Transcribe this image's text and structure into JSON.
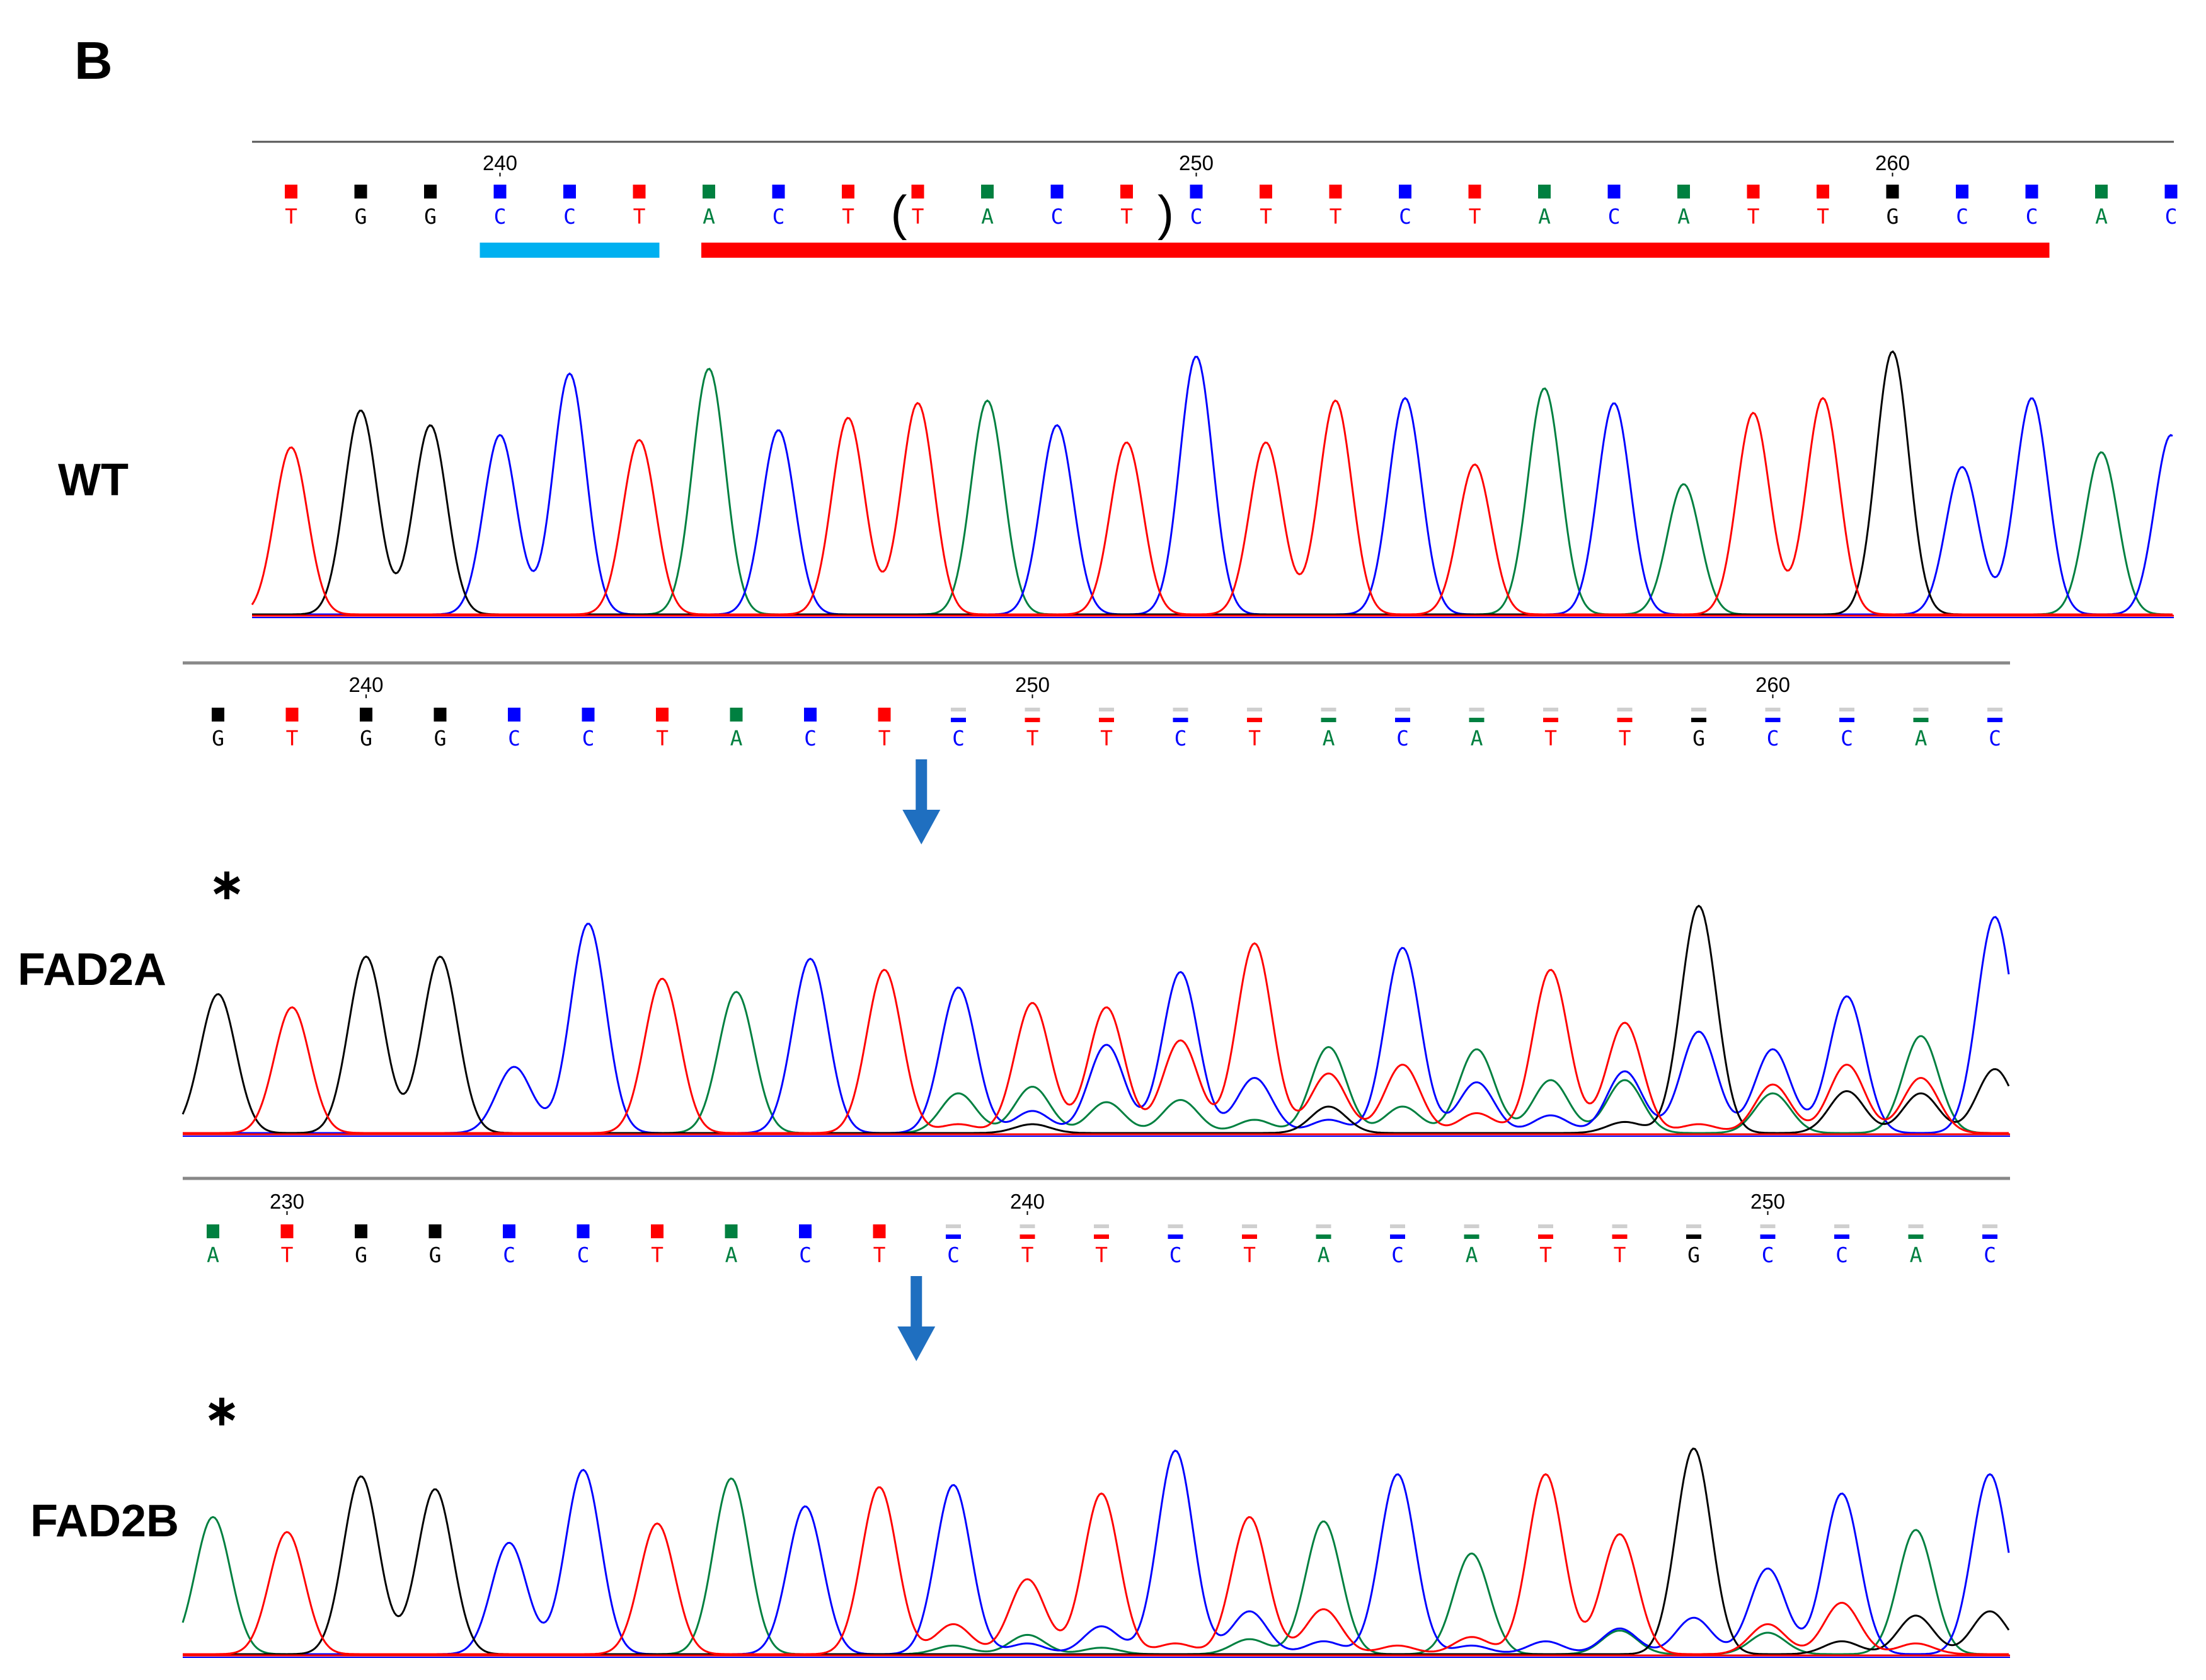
{
  "panel_letter": "B",
  "colors": {
    "A": "#008040",
    "C": "#0000ff",
    "G": "#000000",
    "T": "#ff0000",
    "sgRNA": "#00b0f0",
    "target": "#ff0000",
    "arrow": "#1f6fc0"
  },
  "tracks": [
    {
      "label": "WT",
      "numbers": [
        {
          "text": "240",
          "index": 3
        },
        {
          "text": "250",
          "index": 13
        },
        {
          "text": "260",
          "index": 23
        }
      ],
      "sequence": [
        "T",
        "G",
        "G",
        "C",
        "C",
        "T",
        "A",
        "C",
        "T",
        "T",
        "A",
        "C",
        "T",
        "C",
        "T",
        "T",
        "C",
        "T",
        "A",
        "C",
        "A",
        "T",
        "T",
        "G",
        "C",
        "C",
        "A",
        "C"
      ],
      "peaks": [
        [
          {
            "b": "T",
            "h": 0.68
          }
        ],
        [
          {
            "b": "G",
            "h": 0.83
          }
        ],
        [
          {
            "b": "G",
            "h": 0.77
          }
        ],
        [
          {
            "b": "C",
            "h": 0.73
          }
        ],
        [
          {
            "b": "C",
            "h": 0.98
          }
        ],
        [
          {
            "b": "T",
            "h": 0.71
          }
        ],
        [
          {
            "b": "A",
            "h": 1.0
          }
        ],
        [
          {
            "b": "C",
            "h": 0.75
          }
        ],
        [
          {
            "b": "T",
            "h": 0.8
          }
        ],
        [
          {
            "b": "T",
            "h": 0.86
          }
        ],
        [
          {
            "b": "A",
            "h": 0.87
          }
        ],
        [
          {
            "b": "C",
            "h": 0.77
          }
        ],
        [
          {
            "b": "T",
            "h": 0.7
          }
        ],
        [
          {
            "b": "C",
            "h": 1.05
          }
        ],
        [
          {
            "b": "T",
            "h": 0.7
          }
        ],
        [
          {
            "b": "T",
            "h": 0.87
          }
        ],
        [
          {
            "b": "C",
            "h": 0.88
          }
        ],
        [
          {
            "b": "T",
            "h": 0.61
          }
        ],
        [
          {
            "b": "A",
            "h": 0.92
          }
        ],
        [
          {
            "b": "C",
            "h": 0.86
          }
        ],
        [
          {
            "b": "A",
            "h": 0.53
          }
        ],
        [
          {
            "b": "T",
            "h": 0.82
          }
        ],
        [
          {
            "b": "T",
            "h": 0.88
          }
        ],
        [
          {
            "b": "G",
            "h": 1.07
          }
        ],
        [
          {
            "b": "C",
            "h": 0.6
          }
        ],
        [
          {
            "b": "C",
            "h": 0.88
          }
        ],
        [
          {
            "b": "A",
            "h": 0.66
          }
        ],
        [
          {
            "b": "C",
            "h": 0.73
          }
        ]
      ],
      "sgRNA_bar": [
        3,
        5
      ],
      "target_bar": [
        6,
        25
      ],
      "parens": {
        "open": "(",
        "close": ")",
        "open_index": 9,
        "close_index": 12
      }
    },
    {
      "label": "FAD2A",
      "numbers": [
        {
          "text": "240",
          "index": 2
        },
        {
          "text": "250",
          "index": 11
        },
        {
          "text": "260",
          "index": 21
        }
      ],
      "sequence": [
        "G",
        "T",
        "G",
        "G",
        "C",
        "C",
        "T",
        "A",
        "C",
        "T",
        "C",
        "T",
        "T",
        "C",
        "T",
        "A",
        "C",
        "A",
        "T",
        "T",
        "G",
        "C",
        "C",
        "A",
        "C"
      ],
      "peaks": [
        [
          {
            "b": "G",
            "h": 0.63
          }
        ],
        [
          {
            "b": "T",
            "h": 0.57
          }
        ],
        [
          {
            "b": "G",
            "h": 0.8
          }
        ],
        [
          {
            "b": "G",
            "h": 0.8
          }
        ],
        [
          {
            "b": "C",
            "h": 0.3
          }
        ],
        [
          {
            "b": "C",
            "h": 0.95
          }
        ],
        [
          {
            "b": "T",
            "h": 0.7
          }
        ],
        [
          {
            "b": "A",
            "h": 0.64
          }
        ],
        [
          {
            "b": "C",
            "h": 0.79
          }
        ],
        [
          {
            "b": "T",
            "h": 0.74
          }
        ],
        [
          {
            "b": "C",
            "h": 0.66
          },
          {
            "b": "A",
            "h": 0.18
          },
          {
            "b": "T",
            "h": 0.04
          }
        ],
        [
          {
            "b": "T",
            "h": 0.59
          },
          {
            "b": "A",
            "h": 0.21
          },
          {
            "b": "C",
            "h": 0.1
          },
          {
            "b": "G",
            "h": 0.04
          }
        ],
        [
          {
            "b": "T",
            "h": 0.57
          },
          {
            "b": "C",
            "h": 0.4
          },
          {
            "b": "A",
            "h": 0.14
          }
        ],
        [
          {
            "b": "C",
            "h": 0.73
          },
          {
            "b": "T",
            "h": 0.42
          },
          {
            "b": "A",
            "h": 0.15
          }
        ],
        [
          {
            "b": "T",
            "h": 0.86
          },
          {
            "b": "C",
            "h": 0.25
          },
          {
            "b": "A",
            "h": 0.06
          }
        ],
        [
          {
            "b": "A",
            "h": 0.39
          },
          {
            "b": "T",
            "h": 0.27
          },
          {
            "b": "G",
            "h": 0.12
          },
          {
            "b": "C",
            "h": 0.06
          }
        ],
        [
          {
            "b": "C",
            "h": 0.84
          },
          {
            "b": "T",
            "h": 0.31
          },
          {
            "b": "A",
            "h": 0.12
          }
        ],
        [
          {
            "b": "A",
            "h": 0.38
          },
          {
            "b": "C",
            "h": 0.23
          },
          {
            "b": "T",
            "h": 0.09
          }
        ],
        [
          {
            "b": "T",
            "h": 0.74
          },
          {
            "b": "A",
            "h": 0.24
          },
          {
            "b": "C",
            "h": 0.08
          }
        ],
        [
          {
            "b": "T",
            "h": 0.5
          },
          {
            "b": "C",
            "h": 0.28
          },
          {
            "b": "A",
            "h": 0.24
          },
          {
            "b": "G",
            "h": 0.05
          }
        ],
        [
          {
            "b": "G",
            "h": 1.03
          },
          {
            "b": "C",
            "h": 0.46
          },
          {
            "b": "T",
            "h": 0.04
          }
        ],
        [
          {
            "b": "C",
            "h": 0.38
          },
          {
            "b": "T",
            "h": 0.22
          },
          {
            "b": "A",
            "h": 0.18
          }
        ],
        [
          {
            "b": "C",
            "h": 0.62
          },
          {
            "b": "T",
            "h": 0.31
          },
          {
            "b": "G",
            "h": 0.19
          }
        ],
        [
          {
            "b": "A",
            "h": 0.44
          },
          {
            "b": "T",
            "h": 0.25
          },
          {
            "b": "G",
            "h": 0.18
          }
        ],
        [
          {
            "b": "C",
            "h": 0.98
          },
          {
            "b": "G",
            "h": 0.29
          }
        ]
      ],
      "arrow_index": 9.5,
      "star_index": 0
    },
    {
      "label": "FAD2B",
      "numbers": [
        {
          "text": "230",
          "index": 1
        },
        {
          "text": "240",
          "index": 11
        },
        {
          "text": "250",
          "index": 21
        }
      ],
      "sequence": [
        "A",
        "T",
        "G",
        "G",
        "C",
        "C",
        "T",
        "A",
        "C",
        "T",
        "C",
        "T",
        "T",
        "C",
        "T",
        "A",
        "C",
        "A",
        "T",
        "T",
        "G",
        "C",
        "C",
        "A",
        "C"
      ],
      "peaks": [
        [
          {
            "b": "A",
            "h": 0.64
          }
        ],
        [
          {
            "b": "T",
            "h": 0.57
          }
        ],
        [
          {
            "b": "G",
            "h": 0.83
          }
        ],
        [
          {
            "b": "G",
            "h": 0.77
          }
        ],
        [
          {
            "b": "C",
            "h": 0.52
          }
        ],
        [
          {
            "b": "C",
            "h": 0.86
          }
        ],
        [
          {
            "b": "T",
            "h": 0.61
          }
        ],
        [
          {
            "b": "A",
            "h": 0.82
          }
        ],
        [
          {
            "b": "C",
            "h": 0.69
          }
        ],
        [
          {
            "b": "T",
            "h": 0.78
          }
        ],
        [
          {
            "b": "C",
            "h": 0.79
          },
          {
            "b": "T",
            "h": 0.14
          },
          {
            "b": "A",
            "h": 0.04
          }
        ],
        [
          {
            "b": "T",
            "h": 0.35
          },
          {
            "b": "A",
            "h": 0.09
          },
          {
            "b": "C",
            "h": 0.05
          }
        ],
        [
          {
            "b": "T",
            "h": 0.75
          },
          {
            "b": "C",
            "h": 0.13
          },
          {
            "b": "A",
            "h": 0.03
          }
        ],
        [
          {
            "b": "C",
            "h": 0.95
          },
          {
            "b": "T",
            "h": 0.05
          }
        ],
        [
          {
            "b": "T",
            "h": 0.64
          },
          {
            "b": "C",
            "h": 0.2
          },
          {
            "b": "A",
            "h": 0.07
          }
        ],
        [
          {
            "b": "A",
            "h": 0.62
          },
          {
            "b": "T",
            "h": 0.21
          },
          {
            "b": "C",
            "h": 0.06
          }
        ],
        [
          {
            "b": "C",
            "h": 0.84
          },
          {
            "b": "T",
            "h": 0.04
          }
        ],
        [
          {
            "b": "A",
            "h": 0.47
          },
          {
            "b": "T",
            "h": 0.08
          },
          {
            "b": "C",
            "h": 0.04
          }
        ],
        [
          {
            "b": "T",
            "h": 0.84
          },
          {
            "b": "C",
            "h": 0.06
          }
        ],
        [
          {
            "b": "T",
            "h": 0.56
          },
          {
            "b": "C",
            "h": 0.12
          },
          {
            "b": "A",
            "h": 0.11
          }
        ],
        [
          {
            "b": "G",
            "h": 0.96
          },
          {
            "b": "C",
            "h": 0.17
          }
        ],
        [
          {
            "b": "C",
            "h": 0.4
          },
          {
            "b": "T",
            "h": 0.14
          },
          {
            "b": "A",
            "h": 0.1
          }
        ],
        [
          {
            "b": "C",
            "h": 0.75
          },
          {
            "b": "T",
            "h": 0.24
          },
          {
            "b": "G",
            "h": 0.06
          }
        ],
        [
          {
            "b": "A",
            "h": 0.58
          },
          {
            "b": "G",
            "h": 0.18
          },
          {
            "b": "T",
            "h": 0.05
          }
        ],
        [
          {
            "b": "C",
            "h": 0.84
          },
          {
            "b": "G",
            "h": 0.2
          }
        ]
      ],
      "arrow_index": 9.5,
      "star_index": 0
    }
  ]
}
